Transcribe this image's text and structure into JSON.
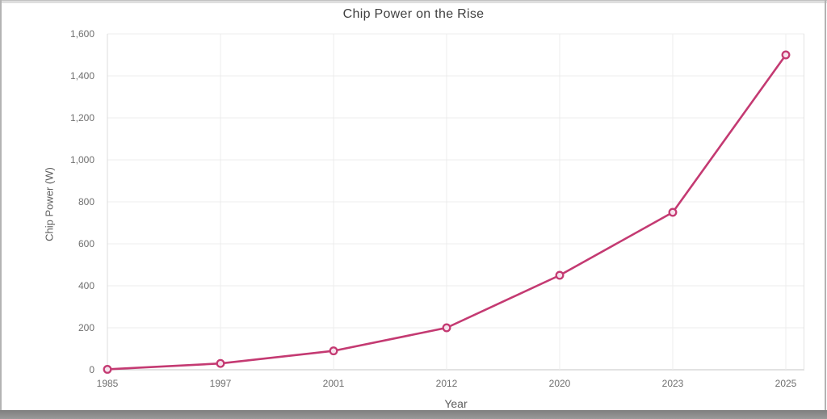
{
  "chart_data": {
    "type": "line",
    "title": "Chip Power on the Rise",
    "xlabel": "Year",
    "ylabel": "Chip Power (W)",
    "categories": [
      "1985",
      "1997",
      "2001",
      "2012",
      "2020",
      "2023",
      "2025"
    ],
    "series": [
      {
        "name": "Chip Power (W)",
        "values": [
          2,
          30,
          90,
          200,
          450,
          750,
          1500
        ]
      }
    ],
    "ylim": [
      0,
      1600
    ],
    "ytick_interval": 200,
    "ytick_labels": [
      "0",
      "200",
      "400",
      "600",
      "800",
      "1,000",
      "1,200",
      "1,400",
      "1,600"
    ],
    "grid": true,
    "legend_position": "none",
    "line_color": "#c43a72",
    "marker_style": "open-circle",
    "marker_fill": "#f6e2ec",
    "gridline_color": "#ececec",
    "axis_line_color": "#c6c6c6"
  }
}
